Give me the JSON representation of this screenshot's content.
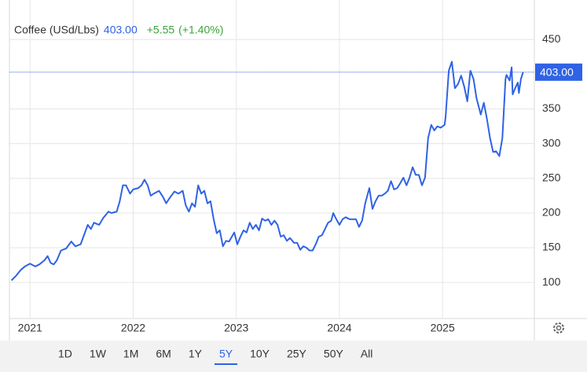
{
  "chart_data": {
    "type": "line",
    "title": "Coffee (USd/Lbs)",
    "price": {
      "value": 403,
      "label": "403.00"
    },
    "change": "+5.55",
    "change_pct": "(+1.40%)",
    "color": "#2f62e6",
    "x": [
      2020.82,
      2020.86,
      2020.91,
      2020.95,
      2021.0,
      2021.05,
      2021.09,
      2021.14,
      2021.17,
      2021.2,
      2021.23,
      2021.26,
      2021.3,
      2021.35,
      2021.4,
      2021.44,
      2021.49,
      2021.53,
      2021.56,
      2021.59,
      2021.62,
      2021.67,
      2021.71,
      2021.76,
      2021.79,
      2021.84,
      2021.87,
      2021.9,
      2021.93,
      2021.97,
      2022.0,
      2022.05,
      2022.08,
      2022.11,
      2022.14,
      2022.17,
      2022.2,
      2022.25,
      2022.29,
      2022.32,
      2022.35,
      2022.4,
      2022.44,
      2022.48,
      2022.51,
      2022.54,
      2022.57,
      2022.6,
      2022.63,
      2022.66,
      2022.69,
      2022.72,
      2022.75,
      2022.78,
      2022.81,
      2022.84,
      2022.87,
      2022.9,
      2022.93,
      2022.98,
      2023.01,
      2023.04,
      2023.07,
      2023.1,
      2023.13,
      2023.16,
      2023.19,
      2023.22,
      2023.25,
      2023.28,
      2023.31,
      2023.34,
      2023.37,
      2023.4,
      2023.43,
      2023.46,
      2023.49,
      2023.52,
      2023.56,
      2023.59,
      2023.62,
      2023.65,
      2023.68,
      2023.71,
      2023.74,
      2023.77,
      2023.8,
      2023.83,
      2023.86,
      2023.89,
      2023.92,
      2023.94,
      2023.97,
      2024.0,
      2024.03,
      2024.06,
      2024.1,
      2024.13,
      2024.16,
      2024.19,
      2024.22,
      2024.25,
      2024.29,
      2024.32,
      2024.35,
      2024.38,
      2024.41,
      2024.44,
      2024.47,
      2024.5,
      2024.53,
      2024.56,
      2024.59,
      2024.62,
      2024.65,
      2024.68,
      2024.71,
      2024.74,
      2024.77,
      2024.8,
      2024.83,
      2024.86,
      2024.89,
      2024.92,
      2024.95,
      2024.98,
      2025.02,
      2025.03,
      2025.06,
      2025.09,
      2025.12,
      2025.15,
      2025.18,
      2025.21,
      2025.24,
      2025.27,
      2025.3,
      2025.33,
      2025.37,
      2025.4,
      2025.43,
      2025.46,
      2025.49,
      2025.52,
      2025.55,
      2025.58,
      2025.61,
      2025.62,
      2025.65,
      2025.67,
      2025.68,
      2025.71,
      2025.73,
      2025.74,
      2025.76,
      2025.78
    ],
    "values": [
      103,
      109,
      118,
      123,
      127,
      123,
      126,
      132,
      138,
      128,
      126,
      132,
      146,
      149,
      159,
      152,
      155,
      171,
      183,
      177,
      186,
      183,
      193,
      202,
      200,
      202,
      217,
      240,
      240,
      228,
      234,
      236,
      240,
      248,
      240,
      225,
      228,
      232,
      223,
      214,
      221,
      231,
      228,
      232,
      211,
      202,
      214,
      209,
      240,
      228,
      232,
      214,
      217,
      191,
      171,
      175,
      152,
      160,
      159,
      172,
      155,
      166,
      175,
      172,
      186,
      177,
      183,
      175,
      192,
      189,
      191,
      183,
      189,
      183,
      166,
      168,
      160,
      164,
      157,
      157,
      147,
      152,
      150,
      146,
      146,
      155,
      166,
      168,
      177,
      186,
      189,
      200,
      191,
      183,
      191,
      194,
      191,
      191,
      191,
      180,
      189,
      214,
      236,
      206,
      217,
      225,
      225,
      228,
      232,
      246,
      234,
      236,
      243,
      251,
      240,
      251,
      266,
      255,
      255,
      240,
      251,
      308,
      327,
      319,
      325,
      323,
      327,
      339,
      405,
      418,
      380,
      386,
      398,
      382,
      361,
      405,
      393,
      365,
      342,
      359,
      336,
      308,
      288,
      289,
      282,
      308,
      393,
      399,
      391,
      410,
      371,
      382,
      388,
      373,
      393,
      403
    ],
    "xlim": [
      2020.8,
      2025.89
    ],
    "ylim": [
      48,
      507
    ],
    "xticks": [
      2021,
      2022,
      2023,
      2024,
      2025
    ],
    "yticks": [
      100,
      150,
      200,
      250,
      300,
      350,
      450
    ],
    "grid": true,
    "ranges": [
      "1D",
      "1W",
      "1M",
      "6M",
      "1Y",
      "5Y",
      "10Y",
      "25Y",
      "50Y",
      "All"
    ],
    "selected": "5Y"
  }
}
